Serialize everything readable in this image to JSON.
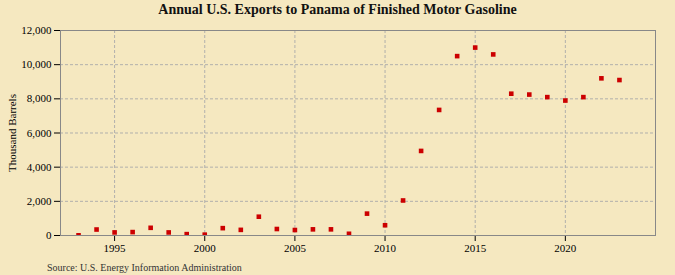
{
  "chart_data": {
    "type": "scatter",
    "title": "Annual U.S. Exports to Panama of Finished Motor Gasoline",
    "ylabel": "Thousand Barrels",
    "annotations": [
      "Source: U.S. Energy Information Administration"
    ],
    "x": [
      1993,
      1994,
      1995,
      1996,
      1997,
      1998,
      1999,
      2000,
      2001,
      2002,
      2003,
      2004,
      2005,
      2006,
      2007,
      2008,
      2009,
      2010,
      2011,
      2012,
      2013,
      2014,
      2015,
      2016,
      2017,
      2018,
      2019,
      2020,
      2021,
      2022,
      2023
    ],
    "values": [
      10,
      350,
      180,
      200,
      450,
      180,
      80,
      50,
      430,
      330,
      1100,
      380,
      320,
      360,
      360,
      100,
      1280,
      600,
      2050,
      4950,
      7350,
      10500,
      11000,
      10600,
      8300,
      8250,
      8100,
      7900,
      8100,
      9200,
      9100
    ],
    "color": "#cc0000",
    "marker": "square",
    "xlim": [
      1992,
      2025
    ],
    "xticks": [
      1995,
      2000,
      2005,
      2010,
      2015,
      2020
    ],
    "ylim": [
      0,
      12000
    ],
    "yticks": [
      0,
      {
        "value": 2000,
        "label": "2,000"
      },
      {
        "value": 4000,
        "label": "4,000"
      },
      {
        "value": 6000,
        "label": "6,000"
      },
      {
        "value": 8000,
        "label": "8,000"
      },
      {
        "value": 10000,
        "label": "10,000"
      },
      {
        "value": 12000,
        "label": "12,000"
      }
    ],
    "grid": true
  }
}
